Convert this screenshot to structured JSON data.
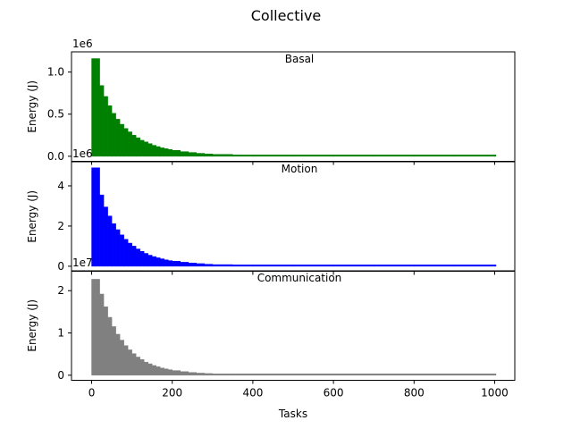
{
  "figure": {
    "title": "Collective"
  },
  "shared_x": {
    "label": "Tasks",
    "ticks": [
      0,
      200,
      400,
      600,
      800,
      1000
    ],
    "xlim": [
      -50,
      1050
    ]
  },
  "chart_data": [
    {
      "type": "bar",
      "title": "Basal",
      "ylabel": "Energy (J)",
      "offset_text": "1e6",
      "color": "#008000",
      "y_ticks": [
        0.0,
        0.5,
        1.0
      ],
      "y_tick_labels": [
        "0.0",
        "0.5",
        "1.0"
      ],
      "ylim": [
        -0.06,
        1.24
      ],
      "x": [
        0,
        10,
        20,
        30,
        40,
        50,
        60,
        70,
        80,
        90,
        100,
        110,
        120,
        130,
        140,
        150,
        160,
        170,
        180,
        190,
        200,
        220,
        240,
        260,
        280,
        300,
        350,
        400,
        500,
        600,
        700,
        800,
        900,
        1000
      ],
      "values": [
        1.16,
        1.16,
        0.84,
        0.71,
        0.6,
        0.51,
        0.44,
        0.38,
        0.33,
        0.29,
        0.25,
        0.22,
        0.19,
        0.17,
        0.15,
        0.13,
        0.115,
        0.1,
        0.09,
        0.08,
        0.07,
        0.055,
        0.045,
        0.035,
        0.028,
        0.022,
        0.014,
        0.009,
        0.005,
        0.003,
        0.002,
        0.0015,
        0.001,
        0.001
      ]
    },
    {
      "type": "bar",
      "title": "Motion",
      "ylabel": "Energy (J)",
      "offset_text": "1e6",
      "color": "#0000ff",
      "y_ticks": [
        0,
        2,
        4
      ],
      "y_tick_labels": [
        "0",
        "2",
        "4"
      ],
      "ylim": [
        -0.25,
        5.2
      ],
      "x": [
        0,
        10,
        20,
        30,
        40,
        50,
        60,
        70,
        80,
        90,
        100,
        110,
        120,
        130,
        140,
        150,
        160,
        170,
        180,
        190,
        200,
        220,
        240,
        260,
        280,
        300,
        350,
        400,
        500,
        600,
        700,
        800,
        900,
        1000
      ],
      "values": [
        4.9,
        4.9,
        3.55,
        2.95,
        2.5,
        2.12,
        1.82,
        1.56,
        1.34,
        1.15,
        1.0,
        0.86,
        0.74,
        0.64,
        0.55,
        0.48,
        0.42,
        0.37,
        0.32,
        0.28,
        0.25,
        0.2,
        0.16,
        0.13,
        0.1,
        0.08,
        0.05,
        0.035,
        0.02,
        0.012,
        0.008,
        0.006,
        0.005,
        0.004
      ]
    },
    {
      "type": "bar",
      "title": "Communication",
      "ylabel": "Energy (J)",
      "offset_text": "1e7",
      "color": "#808080",
      "y_ticks": [
        0,
        1,
        2
      ],
      "y_tick_labels": [
        "0",
        "1",
        "2"
      ],
      "ylim": [
        -0.12,
        2.47
      ],
      "x": [
        0,
        10,
        20,
        30,
        40,
        50,
        60,
        70,
        80,
        90,
        100,
        110,
        120,
        130,
        140,
        150,
        160,
        170,
        180,
        190,
        200,
        220,
        240,
        260,
        280,
        300,
        350,
        400,
        500,
        600,
        700,
        800,
        900,
        1000
      ],
      "values": [
        2.27,
        2.27,
        1.92,
        1.62,
        1.37,
        1.15,
        0.97,
        0.83,
        0.7,
        0.6,
        0.51,
        0.43,
        0.37,
        0.31,
        0.27,
        0.23,
        0.2,
        0.17,
        0.15,
        0.13,
        0.11,
        0.085,
        0.065,
        0.05,
        0.04,
        0.032,
        0.02,
        0.013,
        0.007,
        0.004,
        0.003,
        0.002,
        0.002,
        0.002
      ]
    }
  ]
}
